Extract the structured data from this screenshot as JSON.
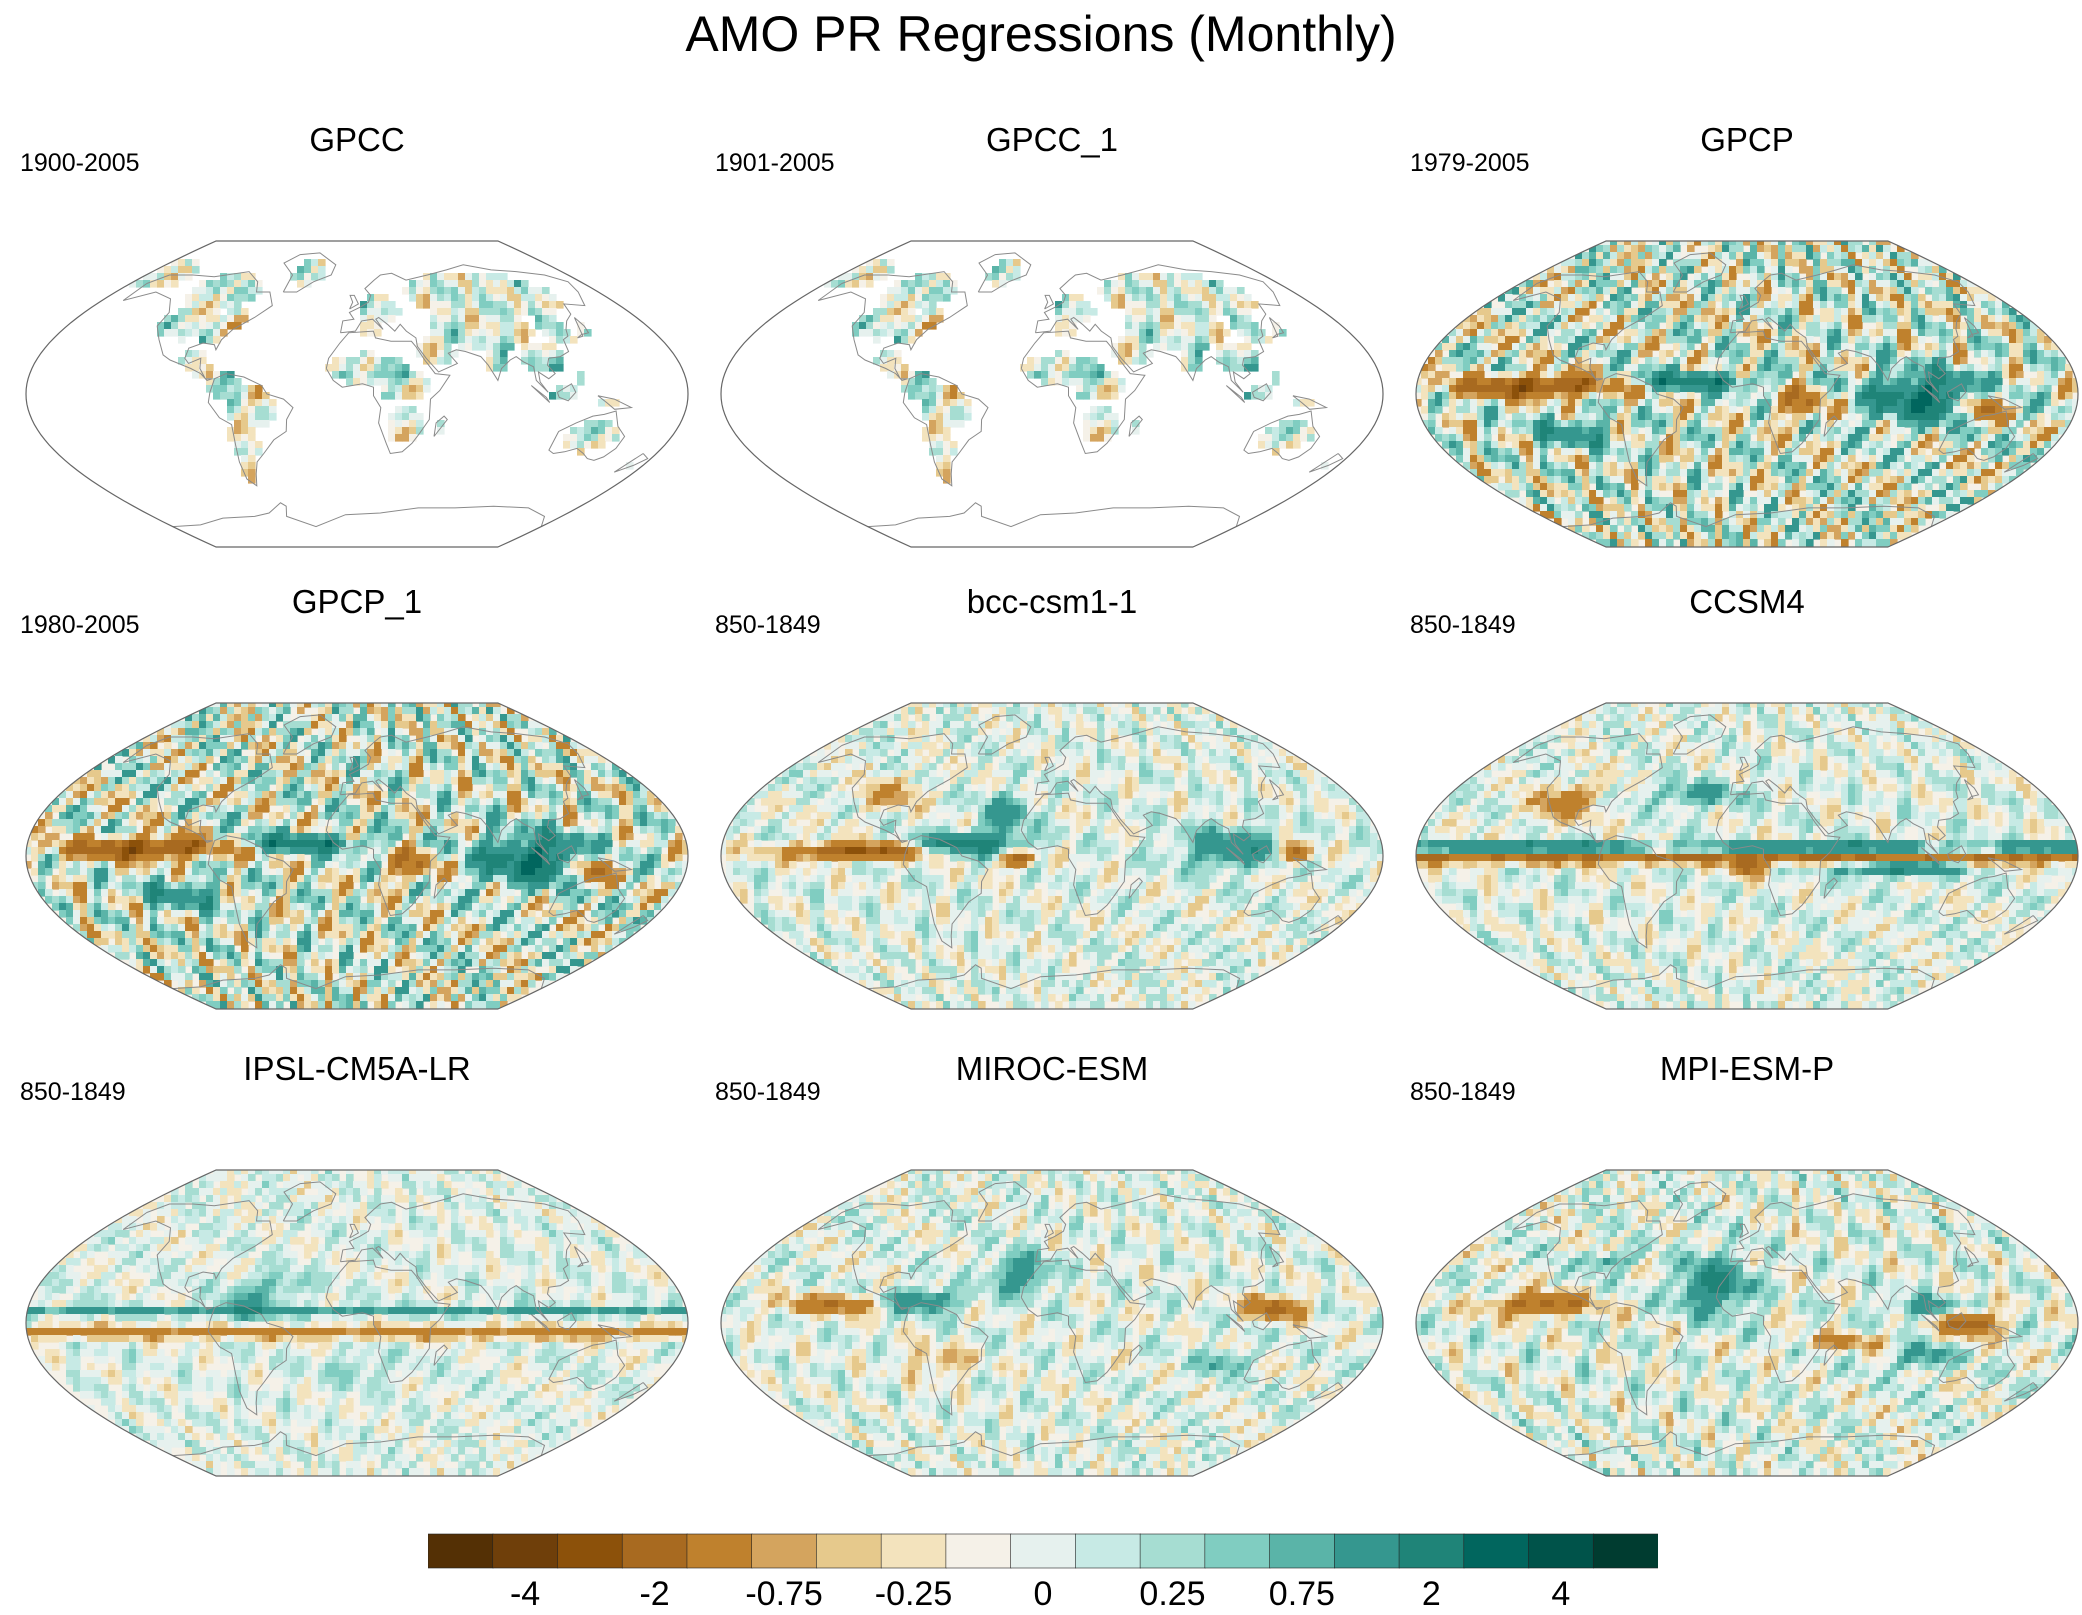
{
  "title": "AMO PR Regressions (Monthly)",
  "chart_data": {
    "type": "heatmap",
    "description_units": "",
    "panels": [
      {
        "name": "GPCC",
        "period": "1900-2005",
        "coverage": "land",
        "pattern": "obs-land"
      },
      {
        "name": "GPCC_1",
        "period": "1901-2005",
        "coverage": "land",
        "pattern": "obs-land"
      },
      {
        "name": "GPCP",
        "period": "1979-2005",
        "coverage": "global",
        "pattern": "gpcp"
      },
      {
        "name": "GPCP_1",
        "period": "1980-2005",
        "coverage": "global",
        "pattern": "gpcp"
      },
      {
        "name": "bcc-csm1-1",
        "period": "850-1849",
        "coverage": "global",
        "pattern": "bcc"
      },
      {
        "name": "CCSM4",
        "period": "850-1849",
        "coverage": "global",
        "pattern": "ccsm4"
      },
      {
        "name": "IPSL-CM5A-LR",
        "period": "850-1849",
        "coverage": "global",
        "pattern": "ipsl"
      },
      {
        "name": "MIROC-ESM",
        "period": "850-1849",
        "coverage": "global",
        "pattern": "miroc"
      },
      {
        "name": "MPI-ESM-P",
        "period": "850-1849",
        "coverage": "global",
        "pattern": "mpi"
      }
    ],
    "colorbar": {
      "colors": [
        "#543005",
        "#6f3f0a",
        "#8c510a",
        "#a86a20",
        "#bf812d",
        "#d4a45e",
        "#e6c98c",
        "#f3e3bd",
        "#f5f1e8",
        "#e6f1ee",
        "#c7eae5",
        "#a6ddd2",
        "#80cdc1",
        "#5ab4a8",
        "#35978f",
        "#1f8478",
        "#01665e",
        "#00534a",
        "#003c30"
      ],
      "tick_labels": [
        "-4",
        "-2",
        "-0.75",
        "-0.25",
        "0",
        "0.25",
        "0.75",
        "2",
        "4"
      ],
      "tick_boundaries": [
        1,
        3,
        5,
        7,
        9,
        11,
        13,
        15,
        17
      ],
      "levels": [
        -5,
        -4,
        -3,
        -2,
        -1,
        -0.75,
        -0.5,
        -0.25,
        0,
        0.25,
        0.5,
        0.75,
        1,
        2,
        3,
        4,
        5
      ]
    }
  }
}
